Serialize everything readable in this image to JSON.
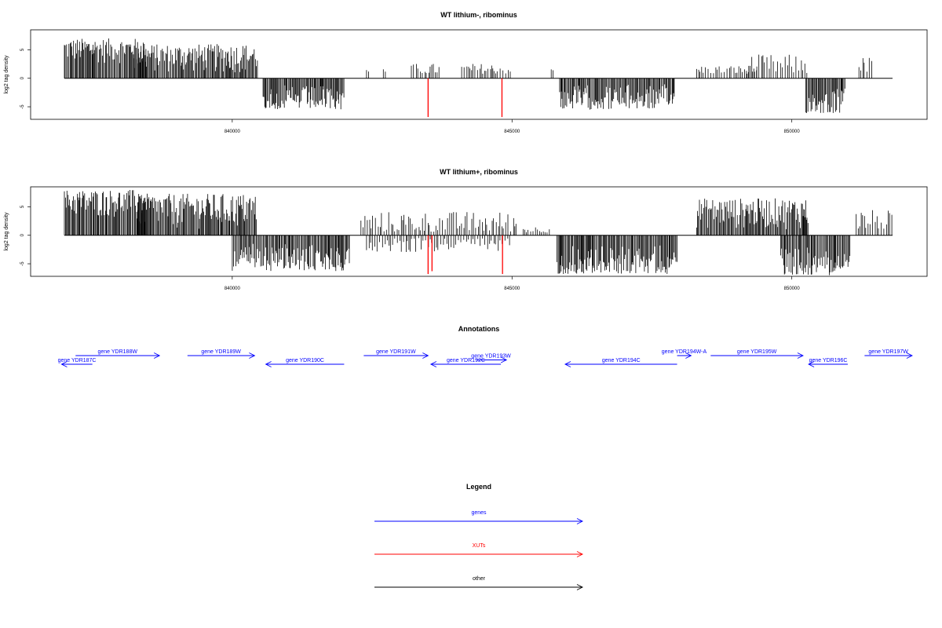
{
  "chart_data": {
    "type": "bar",
    "x_range": [
      837000,
      851800
    ],
    "xticks": [
      {
        "value": 840000,
        "label": "840000"
      },
      {
        "value": 845000,
        "label": "845000"
      },
      {
        "value": 850000,
        "label": "850000"
      }
    ],
    "panels": [
      {
        "title": "WT lithium-, ribominus",
        "ylabel": "log2 tag density",
        "ylim": [
          -7.2,
          8.5
        ],
        "yticks": [
          {
            "value": 5,
            "label": "5"
          },
          {
            "value": 0,
            "label": "0"
          },
          {
            "value": -5,
            "label": "-5"
          }
        ],
        "positive_segments": [
          {
            "start": 837000,
            "end": 838450,
            "min": 2.5,
            "max": 7
          },
          {
            "start": 838250,
            "end": 840450,
            "min": 0.8,
            "max": 6
          },
          {
            "start": 842400,
            "end": 842450,
            "min": 1.0,
            "max": 1.6
          },
          {
            "start": 842700,
            "end": 842750,
            "min": 1.0,
            "max": 1.6
          },
          {
            "start": 843200,
            "end": 843700,
            "min": 0.8,
            "max": 2.6
          },
          {
            "start": 844100,
            "end": 845000,
            "min": 0.8,
            "max": 2.6
          },
          {
            "start": 845700,
            "end": 845750,
            "min": 1.2,
            "max": 1.6
          },
          {
            "start": 848300,
            "end": 849400,
            "min": 0.8,
            "max": 2.3
          },
          {
            "start": 849200,
            "end": 850300,
            "min": 0.8,
            "max": 4.2
          },
          {
            "start": 851200,
            "end": 851450,
            "min": 1.0,
            "max": 3.8
          }
        ],
        "negative_segments": [
          {
            "start": 840550,
            "end": 842000,
            "min": 1.2,
            "max": 5.5
          },
          {
            "start": 845850,
            "end": 847900,
            "min": 1.0,
            "max": 5.5
          },
          {
            "start": 850250,
            "end": 850950,
            "min": 1.5,
            "max": 6.2
          }
        ],
        "highlight_values": [
          {
            "x": 843500,
            "y": -6.8
          },
          {
            "x": 844820,
            "y": -6.8
          }
        ]
      },
      {
        "title": "WT lithium+, ribominus",
        "ylabel": "log2 tag density",
        "ylim": [
          -7.2,
          8.5
        ],
        "yticks": [
          {
            "value": 5,
            "label": "5"
          },
          {
            "value": 0,
            "label": "0"
          },
          {
            "value": -5,
            "label": "-5"
          }
        ],
        "positive_segments": [
          {
            "start": 837000,
            "end": 838450,
            "min": 3,
            "max": 8
          },
          {
            "start": 838300,
            "end": 840450,
            "min": 1,
            "max": 7.3
          },
          {
            "start": 842300,
            "end": 845100,
            "min": 0.6,
            "max": 4.2
          },
          {
            "start": 845200,
            "end": 845700,
            "min": 0.5,
            "max": 1.6
          },
          {
            "start": 848300,
            "end": 850300,
            "min": 1,
            "max": 6.5
          },
          {
            "start": 851150,
            "end": 851800,
            "min": 1,
            "max": 4.5
          }
        ],
        "negative_segments": [
          {
            "start": 840000,
            "end": 842100,
            "min": 1.5,
            "max": 6.3
          },
          {
            "start": 842400,
            "end": 845000,
            "min": 0.5,
            "max": 3.0
          },
          {
            "start": 845800,
            "end": 847950,
            "min": 1.5,
            "max": 6.8
          },
          {
            "start": 849800,
            "end": 851050,
            "min": 2,
            "max": 7.0
          }
        ],
        "highlight_values": [
          {
            "x": 843500,
            "y": -6.8
          },
          {
            "x": 843570,
            "y": -6.3
          },
          {
            "x": 844830,
            "y": -6.8
          }
        ]
      }
    ],
    "annotations": {
      "title": "Annotations",
      "genes": [
        {
          "label": "gene YDR187C",
          "start": 837500,
          "end": 836950,
          "row": 2
        },
        {
          "label": "gene YDR188W",
          "start": 837200,
          "end": 838700,
          "row": 1
        },
        {
          "label": "gene YDR189W",
          "start": 839200,
          "end": 840400,
          "row": 1
        },
        {
          "label": "gene YDR190C",
          "start": 842000,
          "end": 840600,
          "row": 2
        },
        {
          "label": "gene YDR191W",
          "start": 842350,
          "end": 843500,
          "row": 1
        },
        {
          "label": "gene YDR192C",
          "start": 844800,
          "end": 843550,
          "row": 2
        },
        {
          "label": "gene YDR193W",
          "start": 844350,
          "end": 844900,
          "row": 1.5
        },
        {
          "label": "gene YDR194C",
          "start": 847950,
          "end": 845950,
          "row": 2
        },
        {
          "label": "gene YDR194W-A",
          "start": 847950,
          "end": 848200,
          "row": 1
        },
        {
          "label": "gene YDR195W",
          "start": 848550,
          "end": 850200,
          "row": 1
        },
        {
          "label": "gene YDR196C",
          "start": 851000,
          "end": 850300,
          "row": 2
        },
        {
          "label": "gene YDR197W",
          "start": 851300,
          "end": 852150,
          "row": 1
        }
      ]
    },
    "legend": {
      "title": "Legend",
      "entries": [
        {
          "label": "genes",
          "color": "#0000ff"
        },
        {
          "label": "XUTs",
          "color": "#ff0000"
        },
        {
          "label": "other",
          "color": "#000000"
        }
      ]
    },
    "colors": {
      "data": "#000000",
      "highlight": "#ff0000",
      "gene": "#0000ff"
    }
  }
}
